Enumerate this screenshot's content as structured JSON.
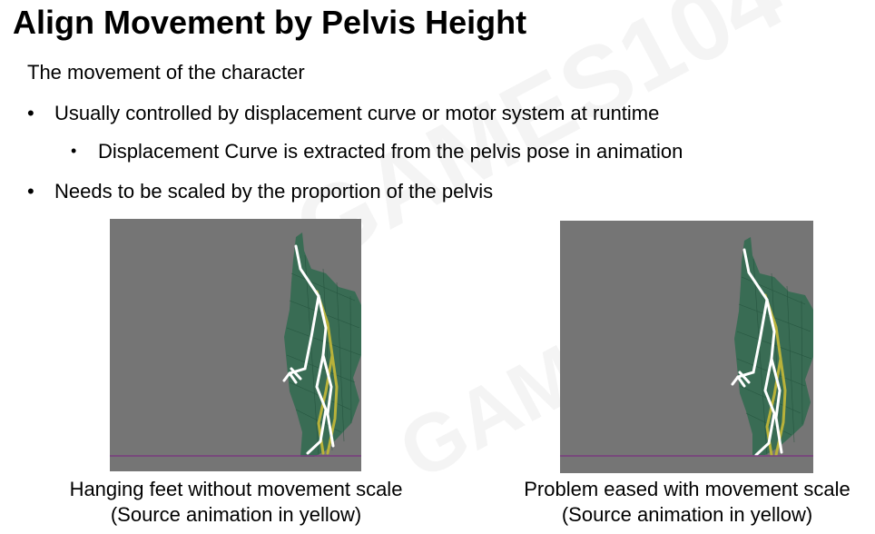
{
  "title": "Align Movement by Pelvis Height",
  "subtitle": "The movement of the character",
  "bullets": {
    "b1": "Usually controlled by displacement curve or motor system at runtime",
    "b2": "Displacement Curve is extracted from the pelvis pose in animation",
    "b3": "Needs to be scaled by the proportion of the pelvis",
    "dot": "•"
  },
  "panels": {
    "left": {
      "caption_line1": "Hanging feet without movement scale",
      "caption_line2": "(Source animation in yellow)"
    },
    "right": {
      "caption_line1": "Problem eased with movement scale",
      "caption_line2": "(Source animation in yellow)"
    }
  },
  "colors": {
    "viewport_bg": "#757575",
    "mesh": "#2f6b4f",
    "skeleton": "#ffffff",
    "source_skeleton": "#b8b23a",
    "ground_line": "#7a3b7f"
  }
}
